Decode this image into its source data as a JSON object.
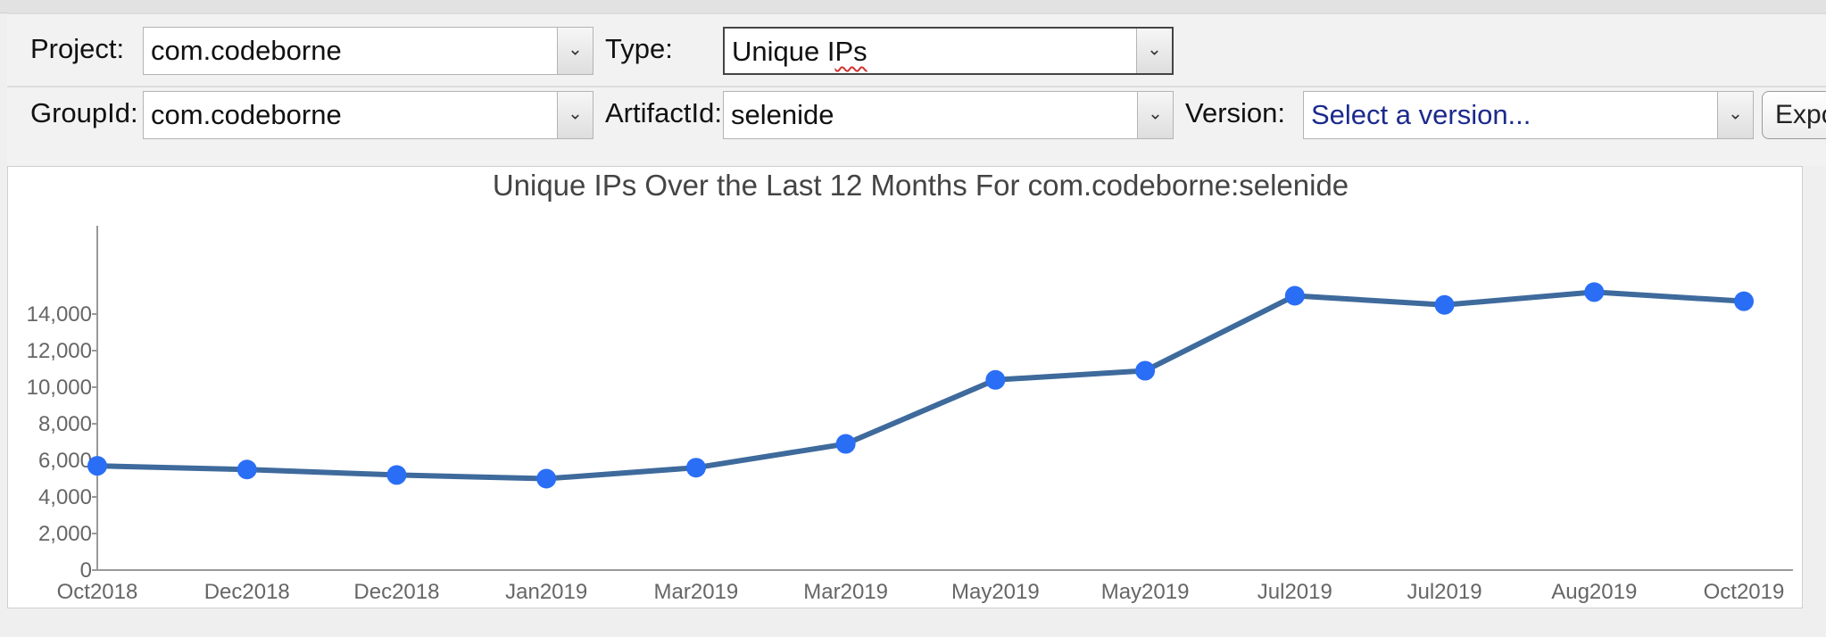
{
  "filters": {
    "project_label": "Project:",
    "project_value": "com.codeborne",
    "type_label": "Type:",
    "type_value_base": "Unique I",
    "type_value_marked": "Ps",
    "groupid_label": "GroupId:",
    "groupid_value": "com.codeborne",
    "artifactid_label": "ArtifactId:",
    "artifactid_value": "selenide",
    "version_label": "Version:",
    "version_placeholder": "Select a version...",
    "export_label": "Expo"
  },
  "icons": {
    "dropdown_arrow": "chevron-down-icon",
    "arrow_glyph": "⌄"
  },
  "colors": {
    "line": "#3e6a9c",
    "marker": "#2a6ef5"
  },
  "chart_data": {
    "type": "line",
    "title": "Unique IPs Over the Last 12 Months For com.codeborne:selenide",
    "categories": [
      "Oct2018",
      "Dec2018",
      "Dec2018",
      "Jan2019",
      "Mar2019",
      "Mar2019",
      "May2019",
      "May2019",
      "Jul2019",
      "Jul2019",
      "Aug2019",
      "Oct2019"
    ],
    "values": [
      5700,
      5500,
      5200,
      5000,
      5600,
      6900,
      10400,
      10900,
      15000,
      14500,
      15200,
      14700
    ],
    "ylim": [
      0,
      15000
    ],
    "yticks": [
      0,
      2000,
      4000,
      6000,
      8000,
      10000,
      12000,
      14000
    ],
    "ytick_labels": [
      "0",
      "2,000",
      "4,000",
      "6,000",
      "8,000",
      "10,000",
      "12,000",
      "14,000"
    ],
    "grid": false,
    "legend": "none"
  }
}
